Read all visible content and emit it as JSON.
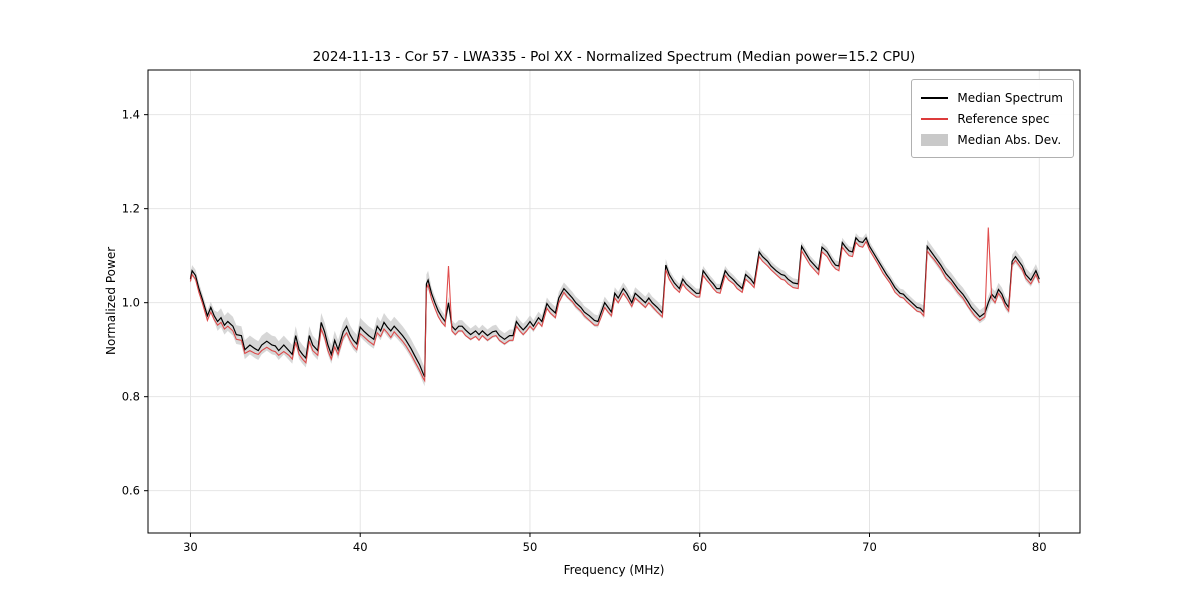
{
  "chart_data": {
    "type": "line",
    "title": "2024-11-13 - Cor 57 - LWA335 - Pol XX - Normalized Spectrum (Median power=15.2 CPU)",
    "xlabel": "Frequency (MHz)",
    "ylabel": "Normalized Power",
    "xlim": [
      27.5,
      82.4
    ],
    "ylim": [
      0.51,
      1.495
    ],
    "xticks": [
      30,
      40,
      50,
      60,
      70,
      80
    ],
    "yticks": [
      0.6,
      0.8,
      1.0,
      1.2,
      1.4
    ],
    "grid": true,
    "legend_position": "upper right",
    "colors": {
      "median": "#000000",
      "reference": "#dd3b3b",
      "band": "#c2c2c2",
      "grid": "#e2e2e2"
    },
    "legend": [
      {
        "label": "Median Spectrum",
        "type": "line",
        "color": "#000000"
      },
      {
        "label": "Reference spec",
        "type": "line",
        "color": "#dd3b3b"
      },
      {
        "label": "Median Abs. Dev.",
        "type": "band",
        "color": "#c9c9c9"
      }
    ],
    "series_note": "points are [freq_MHz, median_power, reference_power]",
    "mad_segments": [
      {
        "until_mhz": 31.5,
        "half_width": 0.012
      },
      {
        "until_mhz": 44.0,
        "half_width": 0.02
      },
      {
        "until_mhz": 58.0,
        "half_width": 0.013
      },
      {
        "until_mhz": 73.0,
        "half_width": 0.01
      },
      {
        "until_mhz": 83.0,
        "half_width": 0.014
      }
    ],
    "points": [
      [
        30.0,
        1.05,
        1.045
      ],
      [
        30.1,
        1.068,
        1.06
      ],
      [
        30.3,
        1.058,
        1.05
      ],
      [
        30.5,
        1.03,
        1.022
      ],
      [
        30.7,
        1.008,
        1.0
      ],
      [
        31.0,
        0.972,
        0.962
      ],
      [
        31.2,
        0.99,
        0.98
      ],
      [
        31.4,
        0.972,
        0.964
      ],
      [
        31.6,
        0.96,
        0.952
      ],
      [
        31.8,
        0.968,
        0.958
      ],
      [
        32.0,
        0.952,
        0.944
      ],
      [
        32.2,
        0.96,
        0.95
      ],
      [
        32.5,
        0.95,
        0.94
      ],
      [
        32.7,
        0.932,
        0.922
      ],
      [
        33.0,
        0.93,
        0.92
      ],
      [
        33.2,
        0.9,
        0.892
      ],
      [
        33.5,
        0.91,
        0.898
      ],
      [
        33.8,
        0.902,
        0.892
      ],
      [
        34.0,
        0.898,
        0.89
      ],
      [
        34.2,
        0.91,
        0.898
      ],
      [
        34.5,
        0.918,
        0.905
      ],
      [
        34.8,
        0.91,
        0.898
      ],
      [
        35.0,
        0.908,
        0.896
      ],
      [
        35.2,
        0.898,
        0.888
      ],
      [
        35.5,
        0.91,
        0.896
      ],
      [
        35.8,
        0.898,
        0.888
      ],
      [
        36.0,
        0.89,
        0.88
      ],
      [
        36.2,
        0.93,
        0.916
      ],
      [
        36.4,
        0.9,
        0.89
      ],
      [
        36.6,
        0.89,
        0.88
      ],
      [
        36.8,
        0.882,
        0.872
      ],
      [
        37.0,
        0.93,
        0.918
      ],
      [
        37.2,
        0.91,
        0.898
      ],
      [
        37.5,
        0.898,
        0.888
      ],
      [
        37.7,
        0.958,
        0.944
      ],
      [
        37.9,
        0.938,
        0.926
      ],
      [
        38.1,
        0.91,
        0.898
      ],
      [
        38.3,
        0.89,
        0.88
      ],
      [
        38.5,
        0.92,
        0.906
      ],
      [
        38.7,
        0.9,
        0.89
      ],
      [
        39.0,
        0.938,
        0.926
      ],
      [
        39.2,
        0.95,
        0.936
      ],
      [
        39.4,
        0.932,
        0.92
      ],
      [
        39.6,
        0.92,
        0.908
      ],
      [
        39.8,
        0.912,
        0.9
      ],
      [
        40.0,
        0.948,
        0.934
      ],
      [
        40.2,
        0.94,
        0.928
      ],
      [
        40.5,
        0.93,
        0.918
      ],
      [
        40.8,
        0.922,
        0.91
      ],
      [
        41.0,
        0.95,
        0.936
      ],
      [
        41.2,
        0.94,
        0.928
      ],
      [
        41.4,
        0.958,
        0.944
      ],
      [
        41.6,
        0.948,
        0.936
      ],
      [
        41.8,
        0.94,
        0.926
      ],
      [
        42.0,
        0.95,
        0.938
      ],
      [
        42.2,
        0.942,
        0.93
      ],
      [
        42.5,
        0.93,
        0.918
      ],
      [
        42.7,
        0.92,
        0.908
      ],
      [
        43.0,
        0.902,
        0.89
      ],
      [
        43.2,
        0.888,
        0.876
      ],
      [
        43.5,
        0.868,
        0.856
      ],
      [
        43.7,
        0.85,
        0.84
      ],
      [
        43.8,
        0.842,
        0.834
      ],
      [
        43.9,
        1.04,
        1.03
      ],
      [
        44.0,
        1.048,
        1.038
      ],
      [
        44.2,
        1.02,
        1.008
      ],
      [
        44.4,
        1.0,
        0.988
      ],
      [
        44.6,
        0.982,
        0.97
      ],
      [
        44.8,
        0.97,
        0.958
      ],
      [
        45.0,
        0.96,
        0.95
      ],
      [
        45.2,
        1.0,
        1.078
      ],
      [
        45.4,
        0.95,
        0.94
      ],
      [
        45.6,
        0.942,
        0.932
      ],
      [
        45.8,
        0.95,
        0.94
      ],
      [
        46.0,
        0.95,
        0.94
      ],
      [
        46.2,
        0.942,
        0.93
      ],
      [
        46.5,
        0.932,
        0.922
      ],
      [
        46.8,
        0.94,
        0.928
      ],
      [
        47.0,
        0.932,
        0.92
      ],
      [
        47.2,
        0.94,
        0.93
      ],
      [
        47.5,
        0.93,
        0.92
      ],
      [
        47.8,
        0.938,
        0.928
      ],
      [
        48.0,
        0.94,
        0.93
      ],
      [
        48.2,
        0.93,
        0.92
      ],
      [
        48.5,
        0.922,
        0.912
      ],
      [
        48.8,
        0.93,
        0.92
      ],
      [
        49.0,
        0.93,
        0.92
      ],
      [
        49.2,
        0.96,
        0.95
      ],
      [
        49.4,
        0.95,
        0.94
      ],
      [
        49.6,
        0.942,
        0.932
      ],
      [
        49.8,
        0.95,
        0.94
      ],
      [
        50.0,
        0.96,
        0.95
      ],
      [
        50.2,
        0.95,
        0.942
      ],
      [
        50.5,
        0.968,
        0.958
      ],
      [
        50.7,
        0.96,
        0.95
      ],
      [
        51.0,
        0.998,
        0.988
      ],
      [
        51.2,
        0.988,
        0.978
      ],
      [
        51.5,
        0.978,
        0.968
      ],
      [
        51.7,
        1.01,
        1.0
      ],
      [
        52.0,
        1.03,
        1.022
      ],
      [
        52.2,
        1.022,
        1.012
      ],
      [
        52.5,
        1.01,
        1.002
      ],
      [
        52.7,
        1.0,
        0.992
      ],
      [
        53.0,
        0.99,
        0.982
      ],
      [
        53.2,
        0.98,
        0.972
      ],
      [
        53.5,
        0.972,
        0.962
      ],
      [
        53.8,
        0.962,
        0.952
      ],
      [
        54.0,
        0.96,
        0.952
      ],
      [
        54.2,
        0.98,
        0.97
      ],
      [
        54.4,
        1.0,
        0.99
      ],
      [
        54.6,
        0.99,
        0.98
      ],
      [
        54.8,
        0.98,
        0.972
      ],
      [
        55.0,
        1.02,
        1.01
      ],
      [
        55.2,
        1.01,
        1.0
      ],
      [
        55.5,
        1.03,
        1.02
      ],
      [
        55.7,
        1.02,
        1.01
      ],
      [
        56.0,
        1.0,
        0.992
      ],
      [
        56.2,
        1.02,
        1.01
      ],
      [
        56.5,
        1.01,
        1.0
      ],
      [
        56.8,
        1.0,
        0.99
      ],
      [
        57.0,
        1.01,
        1.0
      ],
      [
        57.2,
        1.0,
        0.992
      ],
      [
        57.5,
        0.99,
        0.98
      ],
      [
        57.8,
        0.978,
        0.97
      ],
      [
        58.0,
        1.08,
        1.07
      ],
      [
        58.2,
        1.06,
        1.05
      ],
      [
        58.5,
        1.042,
        1.032
      ],
      [
        58.8,
        1.03,
        1.022
      ],
      [
        59.0,
        1.05,
        1.04
      ],
      [
        59.2,
        1.04,
        1.03
      ],
      [
        59.5,
        1.03,
        1.02
      ],
      [
        59.8,
        1.02,
        1.012
      ],
      [
        60.0,
        1.02,
        1.012
      ],
      [
        60.2,
        1.068,
        1.058
      ],
      [
        60.4,
        1.058,
        1.048
      ],
      [
        60.6,
        1.048,
        1.04
      ],
      [
        60.8,
        1.04,
        1.03
      ],
      [
        61.0,
        1.03,
        1.022
      ],
      [
        61.2,
        1.03,
        1.02
      ],
      [
        61.5,
        1.068,
        1.058
      ],
      [
        61.7,
        1.058,
        1.048
      ],
      [
        62.0,
        1.048,
        1.04
      ],
      [
        62.2,
        1.04,
        1.03
      ],
      [
        62.5,
        1.03,
        1.022
      ],
      [
        62.7,
        1.06,
        1.05
      ],
      [
        63.0,
        1.05,
        1.04
      ],
      [
        63.2,
        1.04,
        1.032
      ],
      [
        63.5,
        1.108,
        1.098
      ],
      [
        63.7,
        1.098,
        1.088
      ],
      [
        64.0,
        1.088,
        1.078
      ],
      [
        64.2,
        1.078,
        1.07
      ],
      [
        64.5,
        1.068,
        1.06
      ],
      [
        64.8,
        1.06,
        1.05
      ],
      [
        65.0,
        1.058,
        1.048
      ],
      [
        65.2,
        1.05,
        1.04
      ],
      [
        65.5,
        1.042,
        1.032
      ],
      [
        65.8,
        1.04,
        1.03
      ],
      [
        66.0,
        1.12,
        1.11
      ],
      [
        66.2,
        1.108,
        1.098
      ],
      [
        66.5,
        1.09,
        1.08
      ],
      [
        66.8,
        1.078,
        1.068
      ],
      [
        67.0,
        1.07,
        1.06
      ],
      [
        67.2,
        1.118,
        1.108
      ],
      [
        67.5,
        1.108,
        1.098
      ],
      [
        67.8,
        1.09,
        1.08
      ],
      [
        68.0,
        1.08,
        1.072
      ],
      [
        68.2,
        1.078,
        1.068
      ],
      [
        68.4,
        1.128,
        1.118
      ],
      [
        68.6,
        1.118,
        1.108
      ],
      [
        68.8,
        1.11,
        1.1
      ],
      [
        69.0,
        1.108,
        1.098
      ],
      [
        69.2,
        1.138,
        1.128
      ],
      [
        69.4,
        1.13,
        1.12
      ],
      [
        69.6,
        1.128,
        1.118
      ],
      [
        69.8,
        1.138,
        1.13
      ],
      [
        70.0,
        1.12,
        1.112
      ],
      [
        70.2,
        1.108,
        1.1
      ],
      [
        70.5,
        1.09,
        1.082
      ],
      [
        70.8,
        1.072,
        1.062
      ],
      [
        71.0,
        1.06,
        1.052
      ],
      [
        71.2,
        1.05,
        1.042
      ],
      [
        71.5,
        1.032,
        1.022
      ],
      [
        71.8,
        1.02,
        1.012
      ],
      [
        72.0,
        1.018,
        1.01
      ],
      [
        72.2,
        1.01,
        1.002
      ],
      [
        72.5,
        1.0,
        0.992
      ],
      [
        72.8,
        0.99,
        0.982
      ],
      [
        73.0,
        0.988,
        0.98
      ],
      [
        73.2,
        0.98,
        0.972
      ],
      [
        73.4,
        1.12,
        1.11
      ],
      [
        73.6,
        1.11,
        1.1
      ],
      [
        73.8,
        1.1,
        1.092
      ],
      [
        74.0,
        1.09,
        1.082
      ],
      [
        74.2,
        1.08,
        1.072
      ],
      [
        74.5,
        1.062,
        1.052
      ],
      [
        74.8,
        1.05,
        1.042
      ],
      [
        75.0,
        1.04,
        1.032
      ],
      [
        75.2,
        1.03,
        1.022
      ],
      [
        75.5,
        1.018,
        1.01
      ],
      [
        75.8,
        1.002,
        0.992
      ],
      [
        76.0,
        0.99,
        0.982
      ],
      [
        76.2,
        0.982,
        0.972
      ],
      [
        76.5,
        0.97,
        0.962
      ],
      [
        76.8,
        0.978,
        0.97
      ],
      [
        77.0,
        1.0,
        1.16
      ],
      [
        77.2,
        1.018,
        1.01
      ],
      [
        77.4,
        1.01,
        1.0
      ],
      [
        77.6,
        1.028,
        1.02
      ],
      [
        77.8,
        1.018,
        1.01
      ],
      [
        78.0,
        1.0,
        0.992
      ],
      [
        78.2,
        0.99,
        0.982
      ],
      [
        78.4,
        1.088,
        1.08
      ],
      [
        78.6,
        1.098,
        1.09
      ],
      [
        78.8,
        1.088,
        1.08
      ],
      [
        79.0,
        1.078,
        1.07
      ],
      [
        79.2,
        1.06,
        1.052
      ],
      [
        79.5,
        1.048,
        1.04
      ],
      [
        79.8,
        1.068,
        1.06
      ],
      [
        80.0,
        1.05,
        1.042
      ]
    ]
  }
}
